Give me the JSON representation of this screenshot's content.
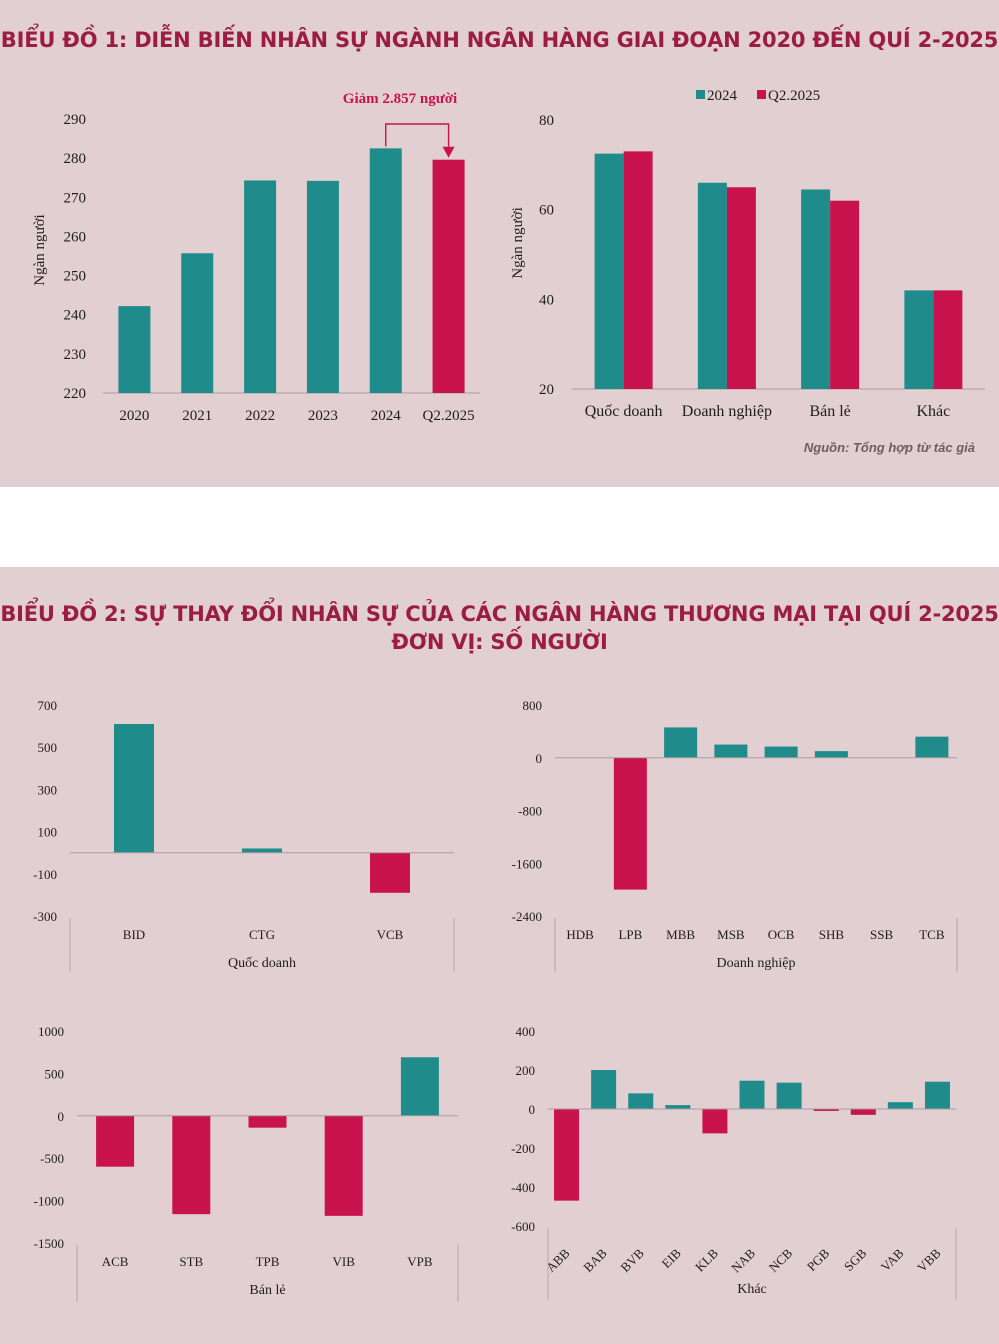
{
  "chart1": {
    "title": "BIỂU ĐỒ 1: DIỄN BIẾN NHÂN SỰ NGÀNH NGÂN HÀNG GIAI ĐOẠN 2020 ĐẾN QUÍ 2-2025",
    "source": "Nguồn: Tổng hợp từ tác giả",
    "colors": {
      "teal": "#1f8c8b",
      "crimson": "#c8134e"
    }
  },
  "chart2": {
    "title_line1": "BIỂU ĐỒ 2: SỰ THAY ĐỔI NHÂN SỰ CỦA CÁC NGÂN HÀNG THƯƠNG MẠI TẠI QUÍ 2-2025",
    "title_line2": "ĐƠN VỊ: SỐ NGƯỜI"
  },
  "chart_data": [
    {
      "id": "total",
      "type": "bar",
      "categories": [
        "2020",
        "2021",
        "2022",
        "2023",
        "2024",
        "Q2.2025"
      ],
      "values": [
        242.2,
        255.7,
        274.3,
        274.2,
        282.5,
        279.6
      ],
      "colors": [
        "#1f8c8b",
        "#1f8c8b",
        "#1f8c8b",
        "#1f8c8b",
        "#1f8c8b",
        "#c8134e"
      ],
      "ylabel": "Ngàn người",
      "ylim": [
        220,
        290
      ],
      "yticks": [
        220,
        230,
        240,
        250,
        260,
        270,
        280,
        290
      ],
      "annotation": "Giảm 2.857 người"
    },
    {
      "id": "groups",
      "type": "bar",
      "categories": [
        "Quốc doanh",
        "Doanh nghiệp",
        "Bán lẻ",
        "Khác"
      ],
      "series": [
        {
          "name": "2024",
          "color": "#1f8c8b",
          "values": [
            72.5,
            66.0,
            64.5,
            42.0
          ]
        },
        {
          "name": "Q2.2025",
          "color": "#c8134e",
          "values": [
            73.0,
            65.0,
            62.0,
            42.0
          ]
        }
      ],
      "ylabel": "Ngàn người",
      "ylim": [
        20,
        80
      ],
      "yticks": [
        20,
        40,
        60,
        80
      ],
      "legend": "top"
    },
    {
      "id": "quoc-doanh",
      "type": "bar",
      "group": "Quốc doanh",
      "categories": [
        "BID",
        "CTG",
        "VCB"
      ],
      "values": [
        610,
        20,
        -190
      ],
      "ylim": [
        -300,
        700
      ],
      "yticks": [
        -300,
        -100,
        100,
        300,
        500,
        700
      ]
    },
    {
      "id": "doanh-nghiep",
      "type": "bar",
      "group": "Doanh nghiệp",
      "categories": [
        "HDB",
        "LPB",
        "MBB",
        "MSB",
        "OCB",
        "SHB",
        "SSB",
        "TCB"
      ],
      "values": [
        0,
        -2000,
        460,
        200,
        170,
        100,
        0,
        320
      ],
      "ylim": [
        -2400,
        800
      ],
      "yticks": [
        -2400,
        -1600,
        -800,
        0,
        800
      ]
    },
    {
      "id": "ban-le",
      "type": "bar",
      "group": "Bán lẻ",
      "categories": [
        "ACB",
        "STB",
        "TPB",
        "VIB",
        "VPB"
      ],
      "values": [
        -600,
        -1160,
        -140,
        -1180,
        690
      ],
      "ylim": [
        -1500,
        1000
      ],
      "yticks": [
        -1500,
        -1000,
        -500,
        0,
        500,
        1000
      ]
    },
    {
      "id": "khac",
      "type": "bar",
      "group": "Khác",
      "categories": [
        "ABB",
        "BAB",
        "BVB",
        "EIB",
        "KLB",
        "NAB",
        "NCB",
        "PGB",
        "SGB",
        "VAB",
        "VBB"
      ],
      "values": [
        -470,
        200,
        80,
        20,
        -125,
        145,
        135,
        -10,
        -30,
        35,
        140
      ],
      "ylim": [
        -600,
        400
      ],
      "yticks": [
        -600,
        -400,
        -200,
        0,
        200,
        400
      ]
    }
  ]
}
